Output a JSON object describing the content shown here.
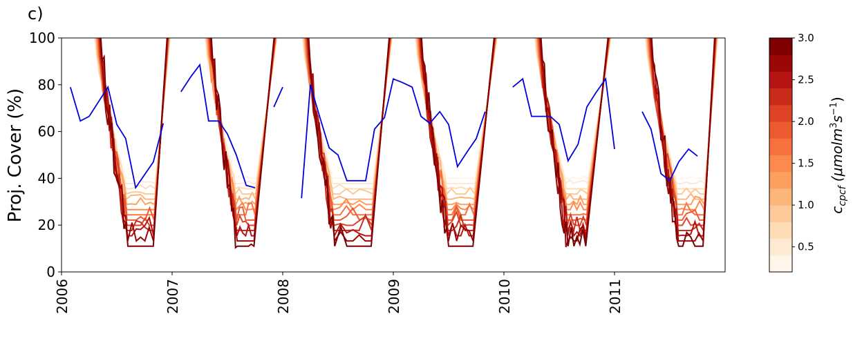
{
  "panel_label": "c)",
  "chart_data": {
    "type": "line",
    "ylabel": "Proj. Cover (%)",
    "xlabel": "",
    "xlim": [
      2006.0,
      2012.0
    ],
    "ylim": [
      0,
      100
    ],
    "x_ticks": [
      "2006",
      "2007",
      "2008",
      "2009",
      "2010",
      "2011"
    ],
    "y_ticks": [
      0,
      20,
      40,
      60,
      80,
      100
    ],
    "grid": false,
    "observed": {
      "color": "#0000dd",
      "segments": [
        [
          [
            2006.08,
            79
          ],
          [
            2006.17,
            64.5
          ],
          [
            2006.25,
            66.5
          ],
          [
            2006.42,
            79
          ],
          [
            2006.5,
            63
          ],
          [
            2006.58,
            57
          ],
          [
            2006.67,
            36
          ],
          [
            2006.83,
            47
          ],
          [
            2006.92,
            63.5
          ]
        ],
        [
          [
            2007.08,
            77
          ],
          [
            2007.17,
            83.5
          ],
          [
            2007.25,
            88.5
          ],
          [
            2007.33,
            64.5
          ],
          [
            2007.42,
            64.5
          ],
          [
            2007.5,
            59
          ],
          [
            2007.58,
            50
          ],
          [
            2007.67,
            37
          ],
          [
            2007.75,
            36
          ]
        ],
        [
          [
            2007.92,
            70.5
          ],
          [
            2008.0,
            79
          ]
        ],
        [
          [
            2008.17,
            31.5
          ],
          [
            2008.25,
            80
          ],
          [
            2008.33,
            67
          ],
          [
            2008.42,
            53
          ],
          [
            2008.5,
            50
          ],
          [
            2008.58,
            39
          ],
          [
            2008.75,
            39
          ],
          [
            2008.83,
            61
          ],
          [
            2008.92,
            66
          ],
          [
            2009.0,
            82.5
          ],
          [
            2009.08,
            81
          ],
          [
            2009.17,
            79
          ],
          [
            2009.25,
            66.5
          ],
          [
            2009.33,
            63.5
          ],
          [
            2009.42,
            68.5
          ],
          [
            2009.5,
            63
          ],
          [
            2009.58,
            45
          ],
          [
            2009.67,
            51.5
          ],
          [
            2009.75,
            57
          ],
          [
            2009.83,
            68.5
          ]
        ],
        [
          [
            2010.08,
            79
          ],
          [
            2010.17,
            82.5
          ],
          [
            2010.25,
            66.5
          ],
          [
            2010.42,
            66.5
          ],
          [
            2010.5,
            63
          ],
          [
            2010.58,
            47.5
          ],
          [
            2010.67,
            54.5
          ],
          [
            2010.75,
            70.5
          ],
          [
            2010.83,
            76.5
          ],
          [
            2010.92,
            82.5
          ],
          [
            2011.0,
            52.5
          ]
        ],
        [
          [
            2011.25,
            68.5
          ],
          [
            2011.33,
            61
          ],
          [
            2011.42,
            42
          ],
          [
            2011.5,
            39
          ],
          [
            2011.58,
            47
          ],
          [
            2011.67,
            52.5
          ],
          [
            2011.75,
            49.5
          ]
        ]
      ]
    },
    "simulated": {
      "description_levels": 14,
      "seasons": [
        {
          "drop_start": 2006.35,
          "min_start": 2006.6,
          "min_end": 2006.83,
          "rise_end": 2006.96
        },
        {
          "drop_start": 2007.35,
          "min_start": 2007.59,
          "min_end": 2007.74,
          "rise_end": 2007.93
        },
        {
          "drop_start": 2008.23,
          "min_start": 2008.47,
          "min_end": 2008.8,
          "rise_end": 2008.97
        },
        {
          "drop_start": 2009.25,
          "min_start": 2009.5,
          "min_end": 2009.72,
          "rise_end": 2009.92
        },
        {
          "drop_start": 2010.33,
          "min_start": 2010.58,
          "min_end": 2010.74,
          "rise_end": 2010.95
        },
        {
          "drop_start": 2011.33,
          "min_start": 2011.58,
          "min_end": 2011.8,
          "rise_end": 2011.91
        }
      ]
    },
    "colorbar": {
      "label": "c_cpcf (μmolm³s⁻¹)",
      "label_main": "c",
      "label_sub": "cpcf",
      "label_rest_prefix": "(μmolm",
      "label_sup1": "3",
      "label_mid": "s",
      "label_sup2": "−1",
      "label_close": ")",
      "min": 0.2,
      "max": 3.0,
      "ticks": [
        "0.5",
        "1.0",
        "1.5",
        "2.0",
        "2.5",
        "3.0"
      ],
      "tick_values": [
        0.5,
        1.0,
        1.5,
        2.0,
        2.5,
        3.0
      ],
      "colors": [
        "#fff5eb",
        "#fee9d4",
        "#fddcb8",
        "#fdc997",
        "#fdb67a",
        "#fd9f5f",
        "#fc8a4d",
        "#f7723f",
        "#ec5a32",
        "#de4326",
        "#ca2c1b",
        "#b51412",
        "#9a0706",
        "#7f0000"
      ]
    }
  }
}
